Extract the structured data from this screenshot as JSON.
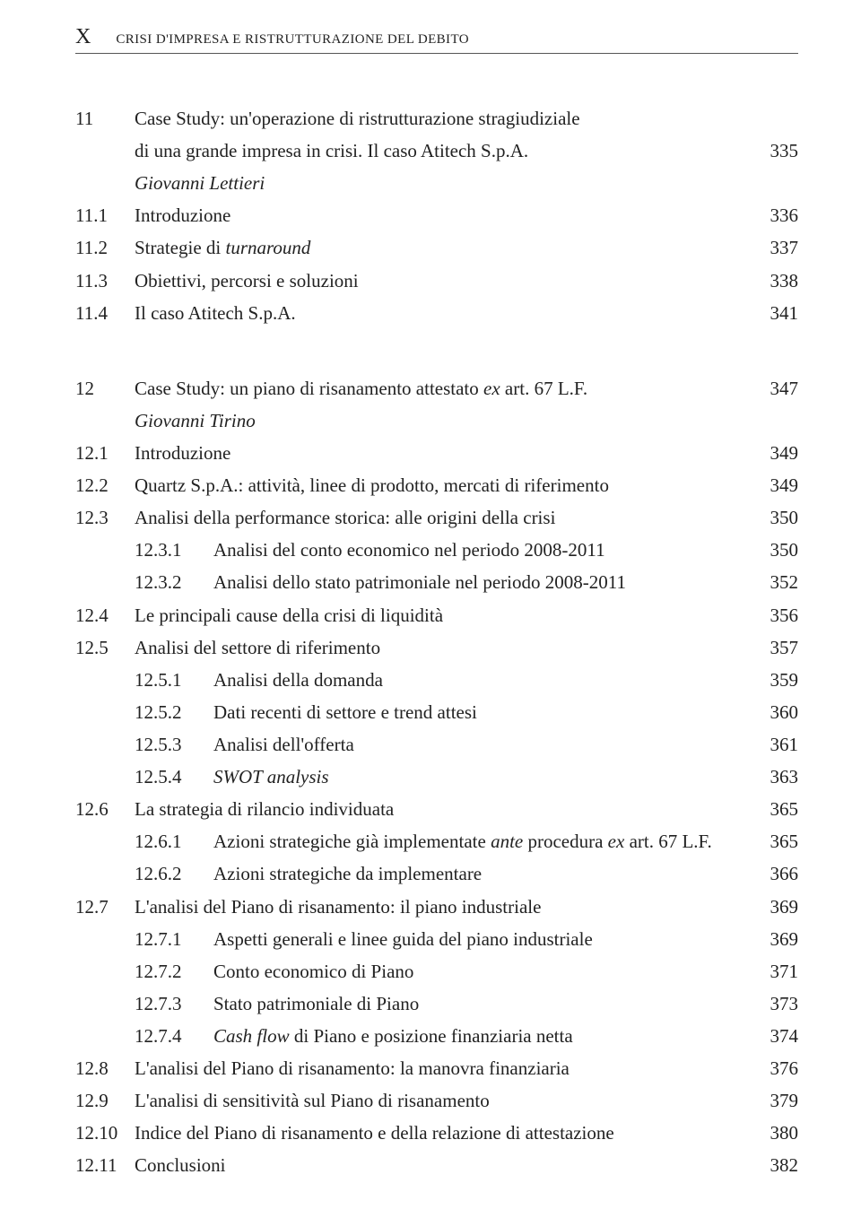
{
  "header": {
    "marker": "X",
    "running_title": "CRISI D'IMPRESA E RISTRUTTURAZIONE DEL DEBITO"
  },
  "rows": [
    {
      "type": "ch_multi",
      "num": "11",
      "title_line1": "Case Study: un'operazione di ristrutturazione stragiudiziale",
      "title_line2": "di una grande impresa in crisi. Il caso Atitech S.p.A.",
      "page": "335"
    },
    {
      "type": "author",
      "text": "Giovanni Lettieri"
    },
    {
      "type": "l1",
      "num": "11.1",
      "title": "Introduzione",
      "page": "336"
    },
    {
      "type": "l1_it",
      "num": "11.2",
      "pre": "Strategie di ",
      "it": "turnaround",
      "post": "",
      "page": "337"
    },
    {
      "type": "l1",
      "num": "11.3",
      "title": "Obiettivi, percorsi e soluzioni",
      "page": "338"
    },
    {
      "type": "l1",
      "num": "11.4",
      "title": "Il caso Atitech S.p.A.",
      "page": "341"
    },
    {
      "type": "gap"
    },
    {
      "type": "l1_it",
      "num": "12",
      "pre": "Case Study: un piano di risanamento attestato ",
      "it": "ex",
      "post": " art. 67 L.F.",
      "page": "347",
      "chapter": true
    },
    {
      "type": "author",
      "text": "Giovanni Tirino"
    },
    {
      "type": "l1",
      "num": "12.1",
      "title": "Introduzione",
      "page": "349"
    },
    {
      "type": "l1",
      "num": "12.2",
      "title": "Quartz S.p.A.: attività, linee di prodotto, mercati di riferimento",
      "page": "349"
    },
    {
      "type": "l1",
      "num": "12.3",
      "title": "Analisi della performance storica: alle origini della crisi",
      "page": "350"
    },
    {
      "type": "l2",
      "num": "12.3.1",
      "title": "Analisi del conto economico nel periodo 2008-2011",
      "page": "350"
    },
    {
      "type": "l2",
      "num": "12.3.2",
      "title": "Analisi dello stato patrimoniale nel periodo 2008-2011",
      "page": "352"
    },
    {
      "type": "l1",
      "num": "12.4",
      "title": "Le principali cause della crisi di liquidità",
      "page": "356"
    },
    {
      "type": "l1",
      "num": "12.5",
      "title": "Analisi del settore di riferimento",
      "page": "357"
    },
    {
      "type": "l2",
      "num": "12.5.1",
      "title": "Analisi della domanda",
      "page": "359"
    },
    {
      "type": "l2",
      "num": "12.5.2",
      "title": "Dati recenti di settore e trend attesi",
      "page": "360"
    },
    {
      "type": "l2",
      "num": "12.5.3",
      "title": "Analisi dell'offerta",
      "page": "361"
    },
    {
      "type": "l2_allit",
      "num": "12.5.4",
      "it": "SWOT analysis",
      "page": "363"
    },
    {
      "type": "l1",
      "num": "12.6",
      "title": "La strategia di rilancio individuata",
      "page": "365"
    },
    {
      "type": "l2_mixed",
      "num": "12.6.1",
      "pre": "Azioni strategiche già implementate ",
      "it1": "ante",
      "mid": " procedura ",
      "it2": "ex",
      "post": " art. 67 L.F.",
      "page": "365"
    },
    {
      "type": "l2",
      "num": "12.6.2",
      "title": "Azioni strategiche da implementare",
      "page": "366"
    },
    {
      "type": "l1",
      "num": "12.7",
      "title": "L'analisi del Piano di risanamento: il piano industriale",
      "page": "369"
    },
    {
      "type": "l2",
      "num": "12.7.1",
      "title": "Aspetti generali e linee guida del piano industriale",
      "page": "369"
    },
    {
      "type": "l2",
      "num": "12.7.2",
      "title": "Conto economico di Piano",
      "page": "371"
    },
    {
      "type": "l2",
      "num": "12.7.3",
      "title": "Stato patrimoniale di Piano",
      "page": "373"
    },
    {
      "type": "l2_it",
      "num": "12.7.4",
      "it": "Cash flow",
      "post": " di Piano e posizione finanziaria netta",
      "page": "374"
    },
    {
      "type": "l1",
      "num": "12.8",
      "title": "L'analisi del Piano di risanamento: la manovra finanziaria",
      "page": "376"
    },
    {
      "type": "l1",
      "num": "12.9",
      "title": "L'analisi di sensitività sul Piano di risanamento",
      "page": "379"
    },
    {
      "type": "l1",
      "num": "12.10",
      "title": "Indice del Piano di risanamento e della relazione di attestazione",
      "page": "380"
    },
    {
      "type": "l1",
      "num": "12.11",
      "title": "Conclusioni",
      "page": "382"
    }
  ]
}
